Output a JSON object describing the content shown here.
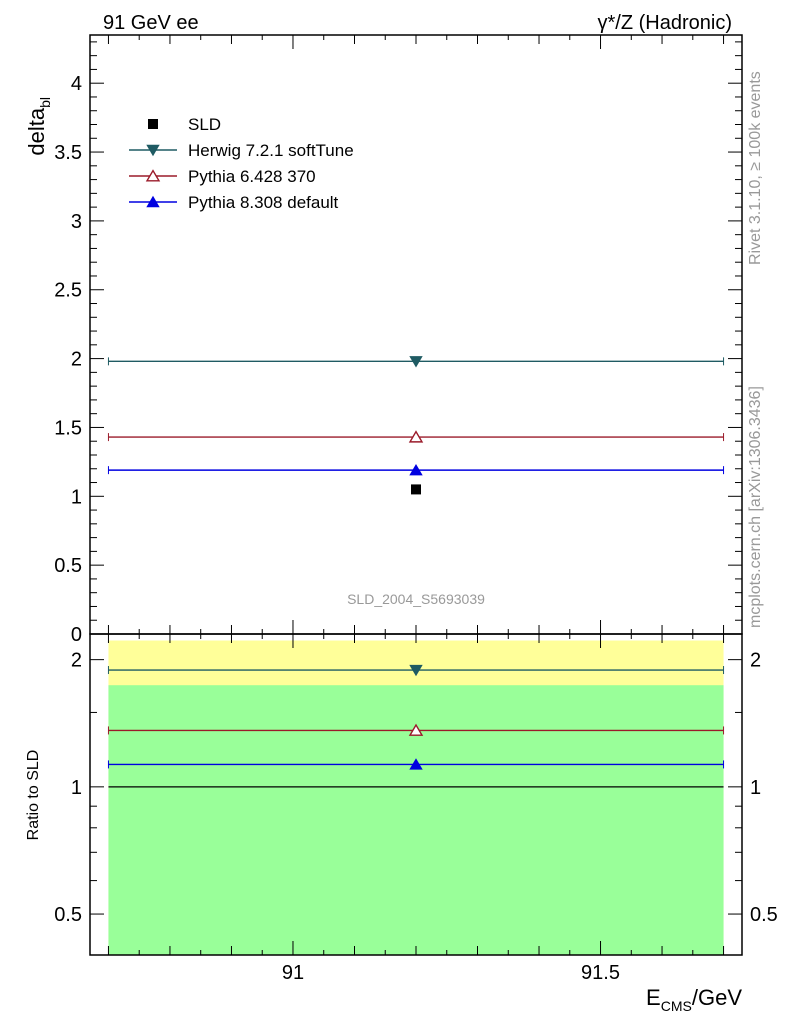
{
  "header": {
    "left": "91 GeV ee",
    "right": "γ*/Z (Hadronic)"
  },
  "side_text": {
    "rivet": "Rivet 3.1.10, ≥ 100k events",
    "source": "mcplots.cern.ch [arXiv:1306.3436]"
  },
  "watermark": "SLD_2004_S5693039",
  "colors": {
    "herwig": "#1f5b63",
    "pythia6": "#9b1b2a",
    "pythia8": "#0000e0",
    "data": "#000000",
    "band_outer": "#ffff99",
    "band_inner": "#99ff99"
  },
  "chart_data": [
    {
      "type": "scatter",
      "ylabel_main": "delta",
      "ylabel_sub": "bl",
      "xlim": [
        90.67,
        91.73
      ],
      "ylim": [
        0,
        4.35
      ],
      "yticks": [
        0,
        0.5,
        1,
        1.5,
        2,
        2.5,
        3,
        3.5,
        4
      ],
      "ytick_labels": [
        "0",
        "0.5",
        "1",
        "1.5",
        "2",
        "2.5",
        "3",
        "3.5",
        "4"
      ],
      "legend": [
        {
          "key": "data",
          "label": "SLD",
          "marker": "square"
        },
        {
          "key": "herwig",
          "label": "Herwig 7.2.1 softTune",
          "marker": "triangle-down"
        },
        {
          "key": "pythia6",
          "label": "Pythia 6.428 370",
          "marker": "triangle-open"
        },
        {
          "key": "pythia8",
          "label": "Pythia 8.308 default",
          "marker": "triangle-up"
        }
      ],
      "series": [
        {
          "key": "data",
          "name": "SLD",
          "x": [
            91.2
          ],
          "y": [
            1.05
          ]
        },
        {
          "key": "herwig",
          "name": "Herwig 7.2.1 softTune",
          "x": [
            91.2
          ],
          "y": [
            1.98
          ],
          "xrange": [
            90.7,
            91.7
          ]
        },
        {
          "key": "pythia6",
          "name": "Pythia 6.428 370",
          "x": [
            91.2
          ],
          "y": [
            1.43
          ],
          "xrange": [
            90.7,
            91.7
          ]
        },
        {
          "key": "pythia8",
          "name": "Pythia 8.308 default",
          "x": [
            91.2
          ],
          "y": [
            1.19
          ],
          "xrange": [
            90.7,
            91.7
          ]
        }
      ]
    },
    {
      "type": "scatter",
      "ylabel": "Ratio to SLD",
      "xlabel_main": "E",
      "xlabel_sub": "CMS",
      "xlabel_tail": "/GeV",
      "xlim": [
        90.67,
        91.73
      ],
      "ylim": [
        0.4,
        2.3
      ],
      "log_y": true,
      "xticks": [
        91,
        91.5
      ],
      "xtick_labels": [
        "91",
        "91.5"
      ],
      "yticks": [
        0.5,
        1,
        2
      ],
      "ytick_labels": [
        "0.5",
        "1",
        "2"
      ],
      "bands": [
        {
          "key": "band_outer",
          "y_low": 0.33,
          "y_high": 2.22,
          "xrange": [
            90.7,
            91.7
          ]
        },
        {
          "key": "band_inner",
          "y_low": 0.33,
          "y_high": 1.74,
          "xrange": [
            90.7,
            91.7
          ]
        }
      ],
      "reference": 1.0,
      "series": [
        {
          "key": "herwig",
          "x": [
            91.2
          ],
          "y": [
            1.89
          ]
        },
        {
          "key": "pythia6",
          "x": [
            91.2
          ],
          "y": [
            1.36
          ]
        },
        {
          "key": "pythia8",
          "x": [
            91.2
          ],
          "y": [
            1.13
          ]
        }
      ]
    }
  ]
}
